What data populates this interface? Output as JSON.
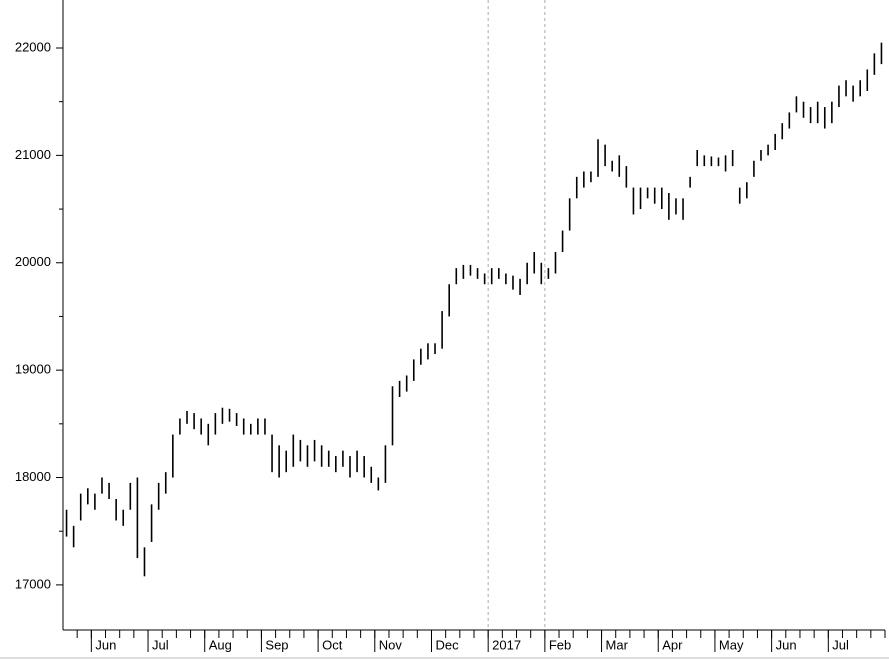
{
  "chart_data": {
    "type": "ohlc",
    "ylim": [
      16580,
      22447
    ],
    "yticks": [
      17000,
      18000,
      19000,
      20000,
      21000,
      22000
    ],
    "color": "#000000",
    "months": [
      {
        "label": null,
        "high": [
          17700,
          17550,
          17850,
          17900
        ],
        "low": [
          17450,
          17350,
          17600,
          17750
        ]
      },
      {
        "label": "Jun",
        "high": [
          17850,
          18000,
          17950,
          17800,
          17700,
          17950,
          18000,
          17350
        ],
        "low": [
          17700,
          17850,
          17800,
          17600,
          17550,
          17700,
          17250,
          17080
        ]
      },
      {
        "label": "Jul",
        "high": [
          17750,
          17950,
          18050,
          18400,
          18550,
          18620,
          18600,
          18550
        ],
        "low": [
          17400,
          17700,
          17850,
          18000,
          18400,
          18500,
          18450,
          18400
        ]
      },
      {
        "label": "Aug",
        "high": [
          18500,
          18600,
          18650,
          18640,
          18600,
          18550,
          18500,
          18550
        ],
        "low": [
          18300,
          18400,
          18500,
          18520,
          18480,
          18400,
          18400,
          18400
        ]
      },
      {
        "label": "Sep",
        "high": [
          18550,
          18400,
          18300,
          18250,
          18400,
          18350,
          18300,
          18350
        ],
        "low": [
          18400,
          18050,
          18000,
          18050,
          18100,
          18150,
          18100,
          18150
        ]
      },
      {
        "label": "Oct",
        "high": [
          18300,
          18250,
          18200,
          18250,
          18200,
          18250,
          18200,
          18100
        ],
        "low": [
          18100,
          18100,
          18050,
          18100,
          18000,
          18050,
          18000,
          17950
        ]
      },
      {
        "label": "Nov",
        "high": [
          18000,
          18300,
          18850,
          18900,
          18950,
          19100,
          19200,
          19250
        ],
        "low": [
          17880,
          17950,
          18300,
          18750,
          18800,
          18900,
          19050,
          19100
        ]
      },
      {
        "label": "Dec",
        "high": [
          19250,
          19550,
          19800,
          19950,
          19980,
          19980,
          19950,
          19900
        ],
        "low": [
          19150,
          19200,
          19500,
          19800,
          19850,
          19880,
          19850,
          19800
        ]
      },
      {
        "label": "2017",
        "divider": true,
        "high": [
          19950,
          19950,
          19900,
          19880,
          19850,
          20000,
          20100,
          20000
        ],
        "low": [
          19800,
          19850,
          19800,
          19750,
          19700,
          19800,
          19900,
          19800
        ]
      },
      {
        "label": "Feb",
        "divider": true,
        "high": [
          19950,
          20100,
          20300,
          20600,
          20800,
          20850,
          20850,
          21150
        ],
        "low": [
          19850,
          19900,
          20100,
          20300,
          20600,
          20700,
          20750,
          20800
        ]
      },
      {
        "label": "Mar",
        "high": [
          21100,
          20950,
          21000,
          20900,
          20700,
          20700,
          20700,
          20700
        ],
        "low": [
          20900,
          20850,
          20800,
          20700,
          20450,
          20500,
          20600,
          20550
        ]
      },
      {
        "label": "Apr",
        "high": [
          20700,
          20650,
          20600,
          20600,
          20800,
          21050,
          21000,
          20990
        ],
        "low": [
          20500,
          20400,
          20450,
          20400,
          20700,
          20900,
          20900,
          20900
        ]
      },
      {
        "label": "May",
        "high": [
          20980,
          21000,
          21050,
          20700,
          20750,
          20950,
          21050,
          21100
        ],
        "low": [
          20900,
          20850,
          20900,
          20550,
          20600,
          20800,
          20950,
          21000
        ]
      },
      {
        "label": "Jun",
        "high": [
          21200,
          21300,
          21400,
          21550,
          21500,
          21450,
          21500,
          21450
        ],
        "low": [
          21050,
          21150,
          21250,
          21400,
          21350,
          21300,
          21300,
          21250
        ]
      },
      {
        "label": "Jul",
        "high": [
          21500,
          21650,
          21700,
          21650,
          21700,
          21800,
          21950,
          22050
        ],
        "low": [
          21300,
          21450,
          21550,
          21500,
          21550,
          21600,
          21750,
          21850
        ]
      }
    ]
  }
}
